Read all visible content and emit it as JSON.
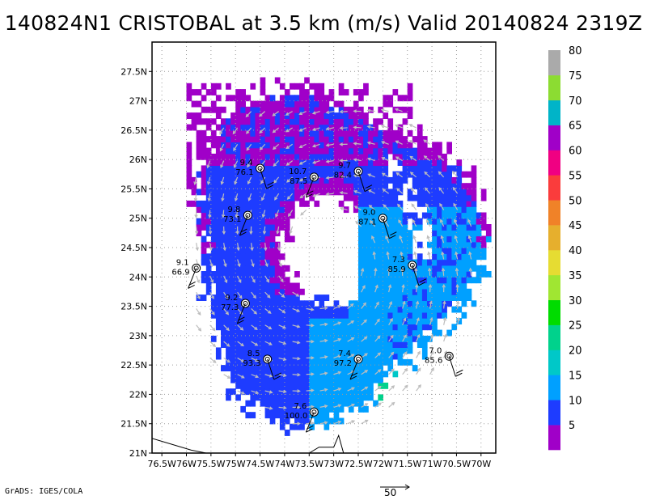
{
  "title": "140824N1 CRISTOBAL at 3.5 km (m/s) Valid 20140824 2319Z",
  "footer": "GrADS: IGES/COLA",
  "reference_vector_label": "50",
  "colors": {
    "grid": "#9a9a9a",
    "vector": "#bdbdbd",
    "bg": "#ffffff"
  },
  "chart_data": {
    "type": "heatmap",
    "title": "140824N1 CRISTOBAL at 3.5 km (m/s) Valid 20140824 2319Z",
    "x_ticks": [
      "76.5W",
      "76W",
      "75.5W",
      "75W",
      "74.5W",
      "74W",
      "73.5W",
      "73W",
      "72.5W",
      "72W",
      "71.5W",
      "71W",
      "70.5W",
      "70W"
    ],
    "y_ticks": [
      "21N",
      "21.5N",
      "22N",
      "22.5N",
      "23N",
      "23.5N",
      "24N",
      "24.5N",
      "25N",
      "25.5N",
      "26N",
      "26.5N",
      "27N",
      "27.5N"
    ],
    "xlim": [
      -76.7,
      -69.7
    ],
    "ylim": [
      21.0,
      28.0
    ],
    "colorbar": {
      "labels": [
        "5",
        "10",
        "15",
        "20",
        "25",
        "30",
        "35",
        "40",
        "45",
        "50",
        "55",
        "60",
        "65",
        "70",
        "75",
        "80"
      ],
      "colors": [
        "#a000c8",
        "#1e3cff",
        "#00a0ff",
        "#00c8c8",
        "#00d28c",
        "#00dc00",
        "#a0e632",
        "#e6dc32",
        "#e6af2d",
        "#f08228",
        "#fa3c3c",
        "#f00082",
        "#a000c8",
        "#00b4c8",
        "#8cdc32",
        "#aaaaaa"
      ]
    },
    "stations": [
      {
        "lon": -74.5,
        "lat": 25.85,
        "wind": "9.4",
        "dir": "76.1"
      },
      {
        "lon": -73.4,
        "lat": 25.7,
        "wind": "10.7",
        "dir": "87.5"
      },
      {
        "lon": -72.5,
        "lat": 25.8,
        "wind": "9.7",
        "dir": "82.4"
      },
      {
        "lon": -74.75,
        "lat": 25.05,
        "wind": "9.8",
        "dir": "73.1"
      },
      {
        "lon": -72.0,
        "lat": 25.0,
        "wind": "9.0",
        "dir": "87.1"
      },
      {
        "lon": -75.8,
        "lat": 24.15,
        "wind": "9.1",
        "dir": "66.9"
      },
      {
        "lon": -71.4,
        "lat": 24.2,
        "wind": "7.3",
        "dir": "85.9"
      },
      {
        "lon": -74.8,
        "lat": 23.55,
        "wind": "9.2",
        "dir": "77.3"
      },
      {
        "lon": -74.35,
        "lat": 22.6,
        "wind": "8.5",
        "dir": "93.3"
      },
      {
        "lon": -72.5,
        "lat": 22.6,
        "wind": "7.4",
        "dir": "97.2"
      },
      {
        "lon": -70.65,
        "lat": 22.65,
        "wind": "7.0",
        "dir": "85.6"
      },
      {
        "lon": -73.4,
        "lat": 21.7,
        "wind": "7.6",
        "dir": "100.0"
      }
    ]
  }
}
